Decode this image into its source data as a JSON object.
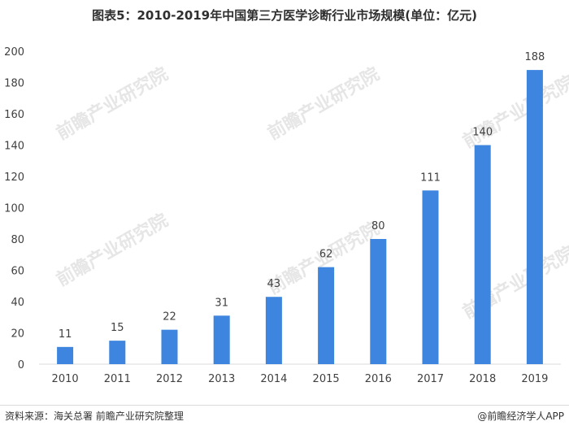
{
  "title": "图表5：2010-2019年中国第三方医学诊断行业市场规模(单位：亿元)",
  "source": "资料来源：海关总署 前瞻产业研究院整理",
  "brand": "@前瞻经济学人APP",
  "watermark": "前瞻产业研究院",
  "colors": {
    "bar": "#3d85de",
    "axis": "#d9d9d9",
    "label": "#404040"
  },
  "chart_data": {
    "type": "bar",
    "categories": [
      "2010",
      "2011",
      "2012",
      "2013",
      "2014",
      "2015",
      "2016",
      "2017",
      "2018",
      "2019"
    ],
    "values": [
      11,
      15,
      22,
      31,
      43,
      62,
      80,
      111,
      140,
      188
    ],
    "title": "图表5：2010-2019年中国第三方医学诊断行业市场规模(单位：亿元)",
    "xlabel": "",
    "ylabel": "",
    "ylim": [
      0,
      200
    ],
    "yticks": [
      0,
      20,
      40,
      60,
      80,
      100,
      120,
      140,
      160,
      180,
      200
    ],
    "grid": false,
    "data_labels": true
  }
}
